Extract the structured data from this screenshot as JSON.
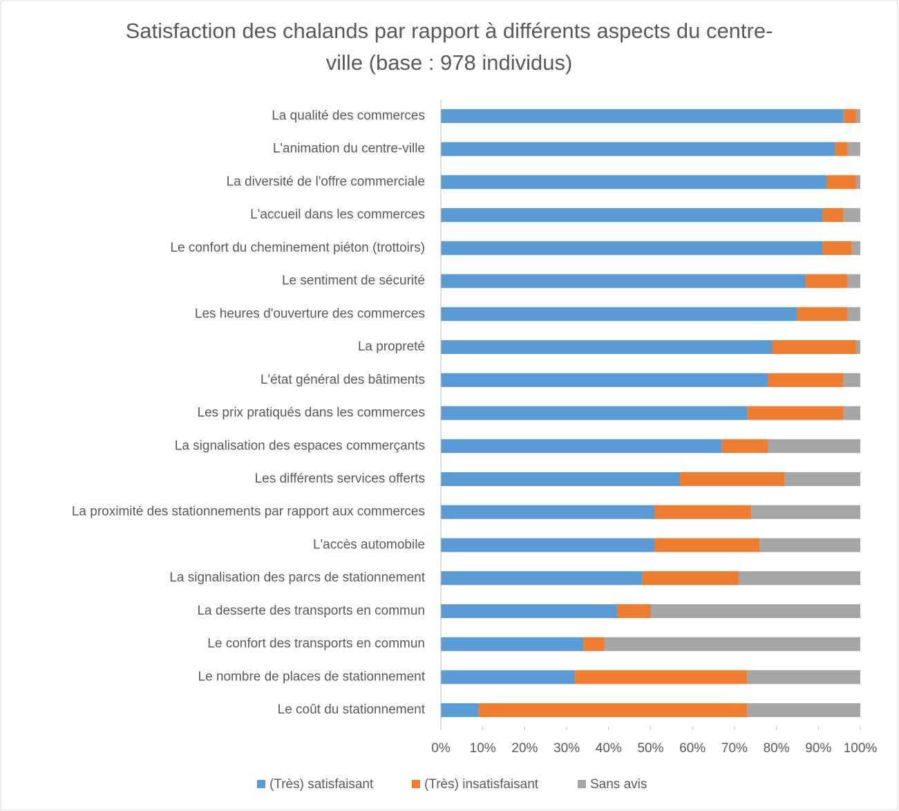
{
  "chart_data": {
    "type": "stacked-bar-horizontal",
    "title": "Satisfaction des chalands par rapport à différents aspects du centre-ville (base : 978 individus)",
    "categories": [
      "La qualité des commerces",
      "L'animation du centre-ville",
      "La diversité de l'offre commerciale",
      "L'accueil dans les commerces",
      "Le confort du cheminement piéton (trottoirs)",
      "Le sentiment de sécurité",
      "Les heures d'ouverture des commerces",
      "La propreté",
      "L'état général des bâtiments",
      "Les prix pratiqués dans les commerces",
      "La signalisation des espaces commerçants",
      "Les différents services offerts",
      "La proximité des stationnements par rapport aux commerces",
      "L'accès automobile",
      "La signalisation des parcs de stationnement",
      "La desserte des transports en commun",
      "Le confort des transports en commun",
      "Le nombre de places de stationnement",
      "Le coût du stationnement"
    ],
    "series": [
      {
        "name": "(Très) satisfaisant",
        "color": "#5b9bd5",
        "values": [
          96,
          94,
          92,
          91,
          91,
          87,
          85,
          79,
          78,
          73,
          67,
          57,
          51,
          51,
          48,
          42,
          34,
          32,
          9
        ]
      },
      {
        "name": "(Très) insatisfaisant",
        "color": "#ed7d31",
        "values": [
          3,
          3,
          7,
          5,
          7,
          10,
          12,
          20,
          18,
          23,
          11,
          25,
          23,
          25,
          23,
          8,
          5,
          41,
          64
        ]
      },
      {
        "name": "Sans avis",
        "color": "#a5a5a5",
        "values": [
          1,
          3,
          1,
          4,
          2,
          3,
          3,
          1,
          4,
          4,
          22,
          18,
          26,
          24,
          29,
          50,
          61,
          27,
          27
        ]
      }
    ],
    "xlim": [
      0,
      100
    ],
    "xticks": [
      {
        "value": 0,
        "label": "0%"
      },
      {
        "value": 10,
        "label": "10%"
      },
      {
        "value": 20,
        "label": "20%"
      },
      {
        "value": 30,
        "label": "30%"
      },
      {
        "value": 40,
        "label": "40%"
      },
      {
        "value": 50,
        "label": "50%"
      },
      {
        "value": 60,
        "label": "60%"
      },
      {
        "value": 70,
        "label": "70%"
      },
      {
        "value": 80,
        "label": "80%"
      },
      {
        "value": 90,
        "label": "90%"
      },
      {
        "value": 100,
        "label": "100%"
      }
    ],
    "legend": "bottom"
  }
}
